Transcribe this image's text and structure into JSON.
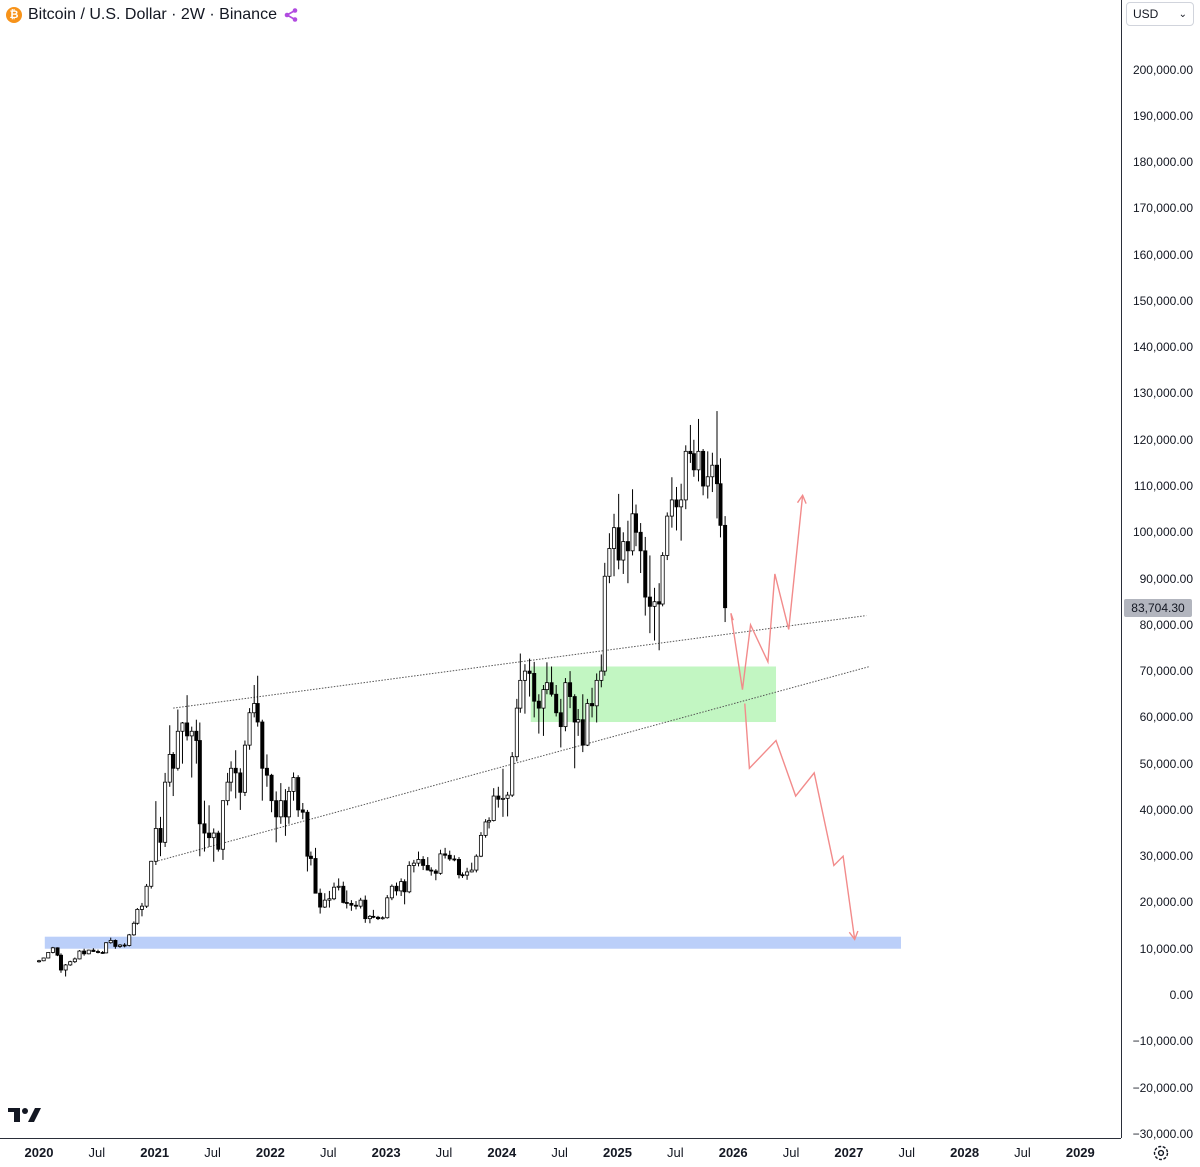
{
  "header": {
    "title": "Bitcoin / U.S. Dollar · 2W · Binance",
    "coin_symbol": "₿"
  },
  "currency_select": {
    "label": "USD"
  },
  "last_price": "83,704.30",
  "price_ticks": [
    "200,000.00",
    "190,000.00",
    "180,000.00",
    "170,000.00",
    "160,000.00",
    "150,000.00",
    "140,000.00",
    "130,000.00",
    "120,000.00",
    "110,000.00",
    "100,000.00",
    "90,000.00",
    "80,000.00",
    "70,000.00",
    "60,000.00",
    "50,000.00",
    "40,000.00",
    "30,000.00",
    "20,000.00",
    "10,000.00",
    "0.00",
    "−10,000.00",
    "−20,000.00",
    "−30,000.00"
  ],
  "time_labels": [
    {
      "text": "2020",
      "year": true
    },
    {
      "text": "Jul",
      "year": false
    },
    {
      "text": "2021",
      "year": true
    },
    {
      "text": "Jul",
      "year": false
    },
    {
      "text": "2022",
      "year": true
    },
    {
      "text": "Jul",
      "year": false
    },
    {
      "text": "2023",
      "year": true
    },
    {
      "text": "Jul",
      "year": false
    },
    {
      "text": "2024",
      "year": true
    },
    {
      "text": "Jul",
      "year": false
    },
    {
      "text": "2025",
      "year": true
    },
    {
      "text": "Jul",
      "year": false
    },
    {
      "text": "2026",
      "year": true
    },
    {
      "text": "Jul",
      "year": false
    },
    {
      "text": "2027",
      "year": true
    },
    {
      "text": "Jul",
      "year": false
    },
    {
      "text": "2028",
      "year": true
    },
    {
      "text": "Jul",
      "year": false
    },
    {
      "text": "2029",
      "year": true
    }
  ],
  "colors": {
    "candle_up": "#ffffff",
    "candle_down": "#000000",
    "green_zone": "#90ee90",
    "blue_zone": "#a4bff7",
    "projection": "#f28b8b"
  },
  "chart_data": {
    "type": "candlestick",
    "interval": "2W",
    "xlim": [
      2020.0,
      2029.5
    ],
    "ylim": [
      -30000,
      210000
    ],
    "candles": [
      [
        2020.0,
        7200,
        7600,
        7000,
        7400
      ],
      [
        2020.04,
        7400,
        8100,
        7300,
        8000
      ],
      [
        2020.08,
        8000,
        9300,
        7900,
        9200
      ],
      [
        2020.12,
        9200,
        10400,
        9000,
        10200
      ],
      [
        2020.16,
        10200,
        10300,
        8400,
        8600
      ],
      [
        2020.19,
        8600,
        9000,
        4800,
        5400
      ],
      [
        2020.23,
        5400,
        6700,
        4000,
        6500
      ],
      [
        2020.27,
        6500,
        7400,
        6300,
        7200
      ],
      [
        2020.31,
        7200,
        8100,
        6900,
        7800
      ],
      [
        2020.35,
        7800,
        9700,
        7700,
        9500
      ],
      [
        2020.39,
        9500,
        10000,
        8500,
        8900
      ],
      [
        2020.43,
        8900,
        9800,
        8800,
        9700
      ],
      [
        2020.47,
        9700,
        10100,
        9300,
        9400
      ],
      [
        2020.51,
        9400,
        9800,
        9000,
        9200
      ],
      [
        2020.55,
        9200,
        9500,
        8900,
        9100
      ],
      [
        2020.58,
        9100,
        11400,
        9000,
        11300
      ],
      [
        2020.62,
        11300,
        12400,
        11100,
        11800
      ],
      [
        2020.66,
        11800,
        12000,
        10000,
        10500
      ],
      [
        2020.7,
        10500,
        11000,
        10200,
        10800
      ],
      [
        2020.74,
        10800,
        11200,
        10300,
        10700
      ],
      [
        2020.78,
        10700,
        13200,
        10500,
        13000
      ],
      [
        2020.82,
        13000,
        15900,
        12800,
        15500
      ],
      [
        2020.85,
        15500,
        18800,
        15200,
        18500
      ],
      [
        2020.89,
        18500,
        19900,
        17000,
        19200
      ],
      [
        2020.93,
        19200,
        24000,
        18800,
        23500
      ],
      [
        2020.97,
        23500,
        29000,
        23000,
        28900
      ],
      [
        2021.01,
        28900,
        41900,
        28100,
        36000
      ],
      [
        2021.05,
        36000,
        38500,
        30000,
        33000
      ],
      [
        2021.09,
        33000,
        48000,
        32000,
        46000
      ],
      [
        2021.13,
        46000,
        58300,
        45000,
        52000
      ],
      [
        2021.16,
        52000,
        52500,
        43000,
        49000
      ],
      [
        2021.2,
        49000,
        61700,
        48500,
        57000
      ],
      [
        2021.24,
        57000,
        59000,
        50000,
        58800
      ],
      [
        2021.28,
        58800,
        64800,
        55000,
        56000
      ],
      [
        2021.32,
        56000,
        58000,
        47000,
        57000
      ],
      [
        2021.36,
        57000,
        59500,
        50000,
        55000
      ],
      [
        2021.39,
        55000,
        58900,
        30000,
        37000
      ],
      [
        2021.43,
        37000,
        42000,
        31000,
        35000
      ],
      [
        2021.47,
        35000,
        41000,
        32000,
        34000
      ],
      [
        2021.51,
        34000,
        36000,
        28800,
        35000
      ],
      [
        2021.55,
        35000,
        35500,
        31000,
        31500
      ],
      [
        2021.59,
        31500,
        42000,
        29200,
        42000
      ],
      [
        2021.63,
        42000,
        48000,
        41000,
        46000
      ],
      [
        2021.66,
        46000,
        50500,
        44000,
        49000
      ],
      [
        2021.7,
        49000,
        52900,
        42500,
        48000
      ],
      [
        2021.74,
        48000,
        49000,
        40000,
        43800
      ],
      [
        2021.78,
        43800,
        55000,
        43000,
        54000
      ],
      [
        2021.82,
        54000,
        62000,
        53000,
        61000
      ],
      [
        2021.86,
        61000,
        67000,
        60000,
        63000
      ],
      [
        2021.89,
        63000,
        69000,
        58000,
        59000
      ],
      [
        2021.93,
        59000,
        59500,
        42000,
        49000
      ],
      [
        2021.97,
        49000,
        52000,
        45000,
        47500
      ],
      [
        2022.01,
        47500,
        47800,
        39500,
        42000
      ],
      [
        2022.05,
        42000,
        44000,
        33000,
        38500
      ],
      [
        2022.09,
        38500,
        45800,
        37000,
        42000
      ],
      [
        2022.13,
        42000,
        44500,
        34400,
        38500
      ],
      [
        2022.16,
        38500,
        45000,
        37000,
        44000
      ],
      [
        2022.2,
        44000,
        48100,
        42000,
        47000
      ],
      [
        2022.24,
        47000,
        47500,
        38500,
        40000
      ],
      [
        2022.28,
        40000,
        41500,
        38000,
        39500
      ],
      [
        2022.32,
        39500,
        40000,
        26700,
        30000
      ],
      [
        2022.35,
        30000,
        31000,
        28000,
        29500
      ],
      [
        2022.39,
        29500,
        31800,
        22500,
        22000
      ],
      [
        2022.43,
        22000,
        23000,
        17600,
        19000
      ],
      [
        2022.47,
        19000,
        22000,
        18800,
        20500
      ],
      [
        2022.51,
        20500,
        22500,
        18900,
        20800
      ],
      [
        2022.55,
        20800,
        24300,
        20500,
        23300
      ],
      [
        2022.59,
        23300,
        25200,
        22600,
        23500
      ],
      [
        2022.63,
        23500,
        24500,
        19800,
        20000
      ],
      [
        2022.66,
        20000,
        22600,
        18700,
        19800
      ],
      [
        2022.7,
        19800,
        20500,
        18200,
        19400
      ],
      [
        2022.74,
        19400,
        20300,
        18500,
        19200
      ],
      [
        2022.78,
        19200,
        21000,
        18700,
        20500
      ],
      [
        2022.82,
        20500,
        21500,
        15600,
        16500
      ],
      [
        2022.86,
        16500,
        17300,
        15500,
        17000
      ],
      [
        2022.89,
        17000,
        18400,
        16600,
        16800
      ],
      [
        2022.93,
        16800,
        17100,
        16200,
        16500
      ],
      [
        2022.97,
        16500,
        17000,
        16300,
        16700
      ],
      [
        2023.01,
        16700,
        21600,
        16500,
        21000
      ],
      [
        2023.05,
        21000,
        23900,
        20500,
        23500
      ],
      [
        2023.09,
        23500,
        24300,
        21500,
        22500
      ],
      [
        2023.13,
        22500,
        25200,
        21400,
        24500
      ],
      [
        2023.16,
        24500,
        25000,
        19600,
        22300
      ],
      [
        2023.2,
        22300,
        28900,
        22000,
        28000
      ],
      [
        2023.24,
        28000,
        29200,
        26500,
        28500
      ],
      [
        2023.28,
        28500,
        31000,
        27800,
        29300
      ],
      [
        2023.32,
        29300,
        30000,
        27000,
        28000
      ],
      [
        2023.36,
        28000,
        29800,
        26900,
        27000
      ],
      [
        2023.39,
        27000,
        27600,
        25800,
        26800
      ],
      [
        2023.43,
        26800,
        27200,
        24800,
        26300
      ],
      [
        2023.47,
        26300,
        31400,
        26000,
        30500
      ],
      [
        2023.51,
        30500,
        31800,
        29500,
        30200
      ],
      [
        2023.55,
        30200,
        31200,
        29000,
        29400
      ],
      [
        2023.59,
        29400,
        30200,
        28900,
        29300
      ],
      [
        2023.63,
        29300,
        29800,
        25200,
        26000
      ],
      [
        2023.66,
        26000,
        26500,
        25300,
        25900
      ],
      [
        2023.7,
        25900,
        27500,
        24900,
        26600
      ],
      [
        2023.74,
        26600,
        28600,
        26500,
        27000
      ],
      [
        2023.78,
        27000,
        30400,
        26500,
        30000
      ],
      [
        2023.82,
        30000,
        35200,
        29800,
        34500
      ],
      [
        2023.86,
        34500,
        38000,
        34000,
        37400
      ],
      [
        2023.89,
        37400,
        38400,
        36000,
        37700
      ],
      [
        2023.93,
        37700,
        44700,
        37500,
        43000
      ],
      [
        2023.97,
        43000,
        45000,
        40500,
        42300
      ],
      [
        2024.01,
        42300,
        48900,
        38500,
        42500
      ],
      [
        2024.05,
        42500,
        43900,
        38600,
        43200
      ],
      [
        2024.09,
        43200,
        52500,
        42800,
        51500
      ],
      [
        2024.13,
        51500,
        64000,
        50500,
        62000
      ],
      [
        2024.16,
        62000,
        73800,
        61000,
        68000
      ],
      [
        2024.2,
        68000,
        71500,
        60800,
        70000
      ],
      [
        2024.24,
        70000,
        72700,
        64500,
        69500
      ],
      [
        2024.28,
        69500,
        72000,
        60000,
        63500
      ],
      [
        2024.32,
        63500,
        65000,
        56500,
        62000
      ],
      [
        2024.36,
        62000,
        67000,
        56000,
        66000
      ],
      [
        2024.39,
        66000,
        71900,
        65000,
        67500
      ],
      [
        2024.43,
        67500,
        71000,
        64500,
        65000
      ],
      [
        2024.47,
        65000,
        67000,
        60200,
        61000
      ],
      [
        2024.51,
        61000,
        64000,
        53500,
        58000
      ],
      [
        2024.55,
        58000,
        68500,
        57000,
        67500
      ],
      [
        2024.59,
        67500,
        70000,
        62000,
        64500
      ],
      [
        2024.63,
        64500,
        65000,
        49000,
        59000
      ],
      [
        2024.66,
        59000,
        61800,
        56000,
        59500
      ],
      [
        2024.7,
        59500,
        65000,
        52500,
        54000
      ],
      [
        2024.74,
        54000,
        64000,
        53800,
        63000
      ],
      [
        2024.78,
        63000,
        66400,
        60000,
        62500
      ],
      [
        2024.82,
        62500,
        69500,
        58900,
        68000
      ],
      [
        2024.86,
        68000,
        73600,
        66500,
        70000
      ],
      [
        2024.89,
        70000,
        93400,
        69000,
        90500
      ],
      [
        2024.93,
        90500,
        99800,
        89000,
        96500
      ],
      [
        2024.97,
        96500,
        104000,
        90500,
        101000
      ],
      [
        2025.01,
        101000,
        108300,
        92000,
        94000
      ],
      [
        2025.05,
        94000,
        100000,
        91000,
        98000
      ],
      [
        2025.09,
        98000,
        102500,
        89000,
        96000
      ],
      [
        2025.13,
        96000,
        109300,
        95000,
        104000
      ],
      [
        2025.16,
        104000,
        106000,
        97000,
        100000
      ],
      [
        2025.2,
        100000,
        102000,
        91200,
        96000
      ],
      [
        2025.24,
        96000,
        99000,
        82000,
        86000
      ],
      [
        2025.28,
        86000,
        95000,
        78200,
        84000
      ],
      [
        2025.32,
        84000,
        88000,
        76600,
        85000
      ],
      [
        2025.36,
        85000,
        89000,
        74500,
        84500
      ],
      [
        2025.39,
        84500,
        95700,
        84000,
        95000
      ],
      [
        2025.43,
        95000,
        104300,
        94000,
        103500
      ],
      [
        2025.47,
        103500,
        111900,
        101000,
        107000
      ],
      [
        2025.51,
        107000,
        109800,
        100400,
        105500
      ],
      [
        2025.55,
        105500,
        110500,
        98200,
        107000
      ],
      [
        2025.59,
        107000,
        118800,
        105000,
        117500
      ],
      [
        2025.63,
        117500,
        123200,
        115000,
        117000
      ],
      [
        2025.66,
        117000,
        120000,
        112000,
        113500
      ],
      [
        2025.7,
        113500,
        124500,
        111000,
        117500
      ],
      [
        2025.74,
        117500,
        118000,
        108000,
        110000
      ],
      [
        2025.78,
        110000,
        117500,
        107300,
        112000
      ],
      [
        2025.82,
        112000,
        117200,
        108700,
        114500
      ],
      [
        2025.86,
        114500,
        126200,
        103000,
        110500
      ],
      [
        2025.89,
        110500,
        116000,
        98900,
        101500
      ],
      [
        2025.93,
        101500,
        103500,
        80600,
        83704
      ]
    ],
    "trendlines": [
      {
        "name": "upper",
        "from": [
          2021.16,
          62000
        ],
        "to": [
          2027.15,
          82000
        ]
      },
      {
        "name": "lower",
        "from": [
          2021.03,
          29000
        ],
        "to": [
          2027.18,
          71000
        ]
      }
    ],
    "zones": [
      {
        "name": "green",
        "x0": 2024.25,
        "x1": 2026.37,
        "y0": 59000,
        "y1": 71000
      },
      {
        "name": "blue",
        "x0": 2020.05,
        "x1": 2027.45,
        "y0": 10000,
        "y1": 12600
      }
    ],
    "projections": [
      {
        "name": "bullish-path",
        "points": [
          [
            2026.0,
            81000
          ],
          [
            2025.98,
            82500
          ],
          [
            2026.08,
            66000
          ],
          [
            2026.15,
            80000
          ],
          [
            2026.3,
            72000
          ],
          [
            2026.36,
            91000
          ],
          [
            2026.48,
            79000
          ],
          [
            2026.6,
            108000
          ]
        ]
      },
      {
        "name": "bearish-path",
        "points": [
          [
            2026.1,
            63000
          ],
          [
            2026.14,
            49000
          ],
          [
            2026.37,
            55000
          ],
          [
            2026.54,
            43000
          ],
          [
            2026.7,
            48000
          ],
          [
            2026.87,
            28000
          ],
          [
            2026.95,
            30000
          ],
          [
            2027.05,
            12000
          ]
        ]
      }
    ]
  }
}
